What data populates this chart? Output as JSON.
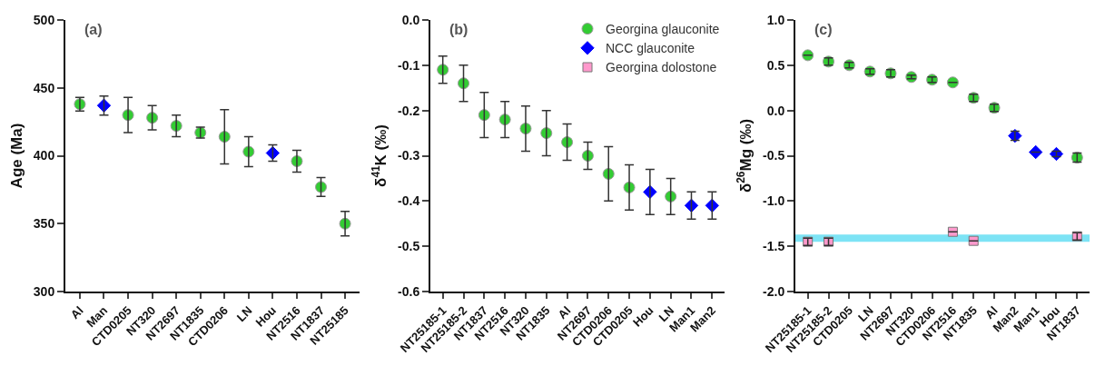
{
  "chart_data": [
    {
      "type": "scatter",
      "ylabel": "Age (Ma)",
      "annotations": [
        "(a)"
      ],
      "categories": [
        "Al",
        "Man",
        "CTD0205",
        "NT320",
        "NT2697",
        "NT1835",
        "CTD0206",
        "LN",
        "Hou",
        "NT2516",
        "NT1837",
        "NT25185"
      ],
      "ylim": [
        300,
        500
      ],
      "yticks": [
        300,
        350,
        400,
        450,
        500
      ],
      "grid": false,
      "legend": false,
      "series": [
        {
          "color": "#33cc33",
          "marker": "circle",
          "values": [
            438,
            null,
            430,
            428,
            422,
            417,
            414,
            403,
            null,
            396,
            377,
            350
          ],
          "errors": [
            [
              433,
              443
            ],
            null,
            [
              417,
              443
            ],
            [
              419,
              437
            ],
            [
              414,
              430
            ],
            [
              413,
              421
            ],
            [
              394,
              434
            ],
            [
              392,
              414
            ],
            null,
            [
              388,
              404
            ],
            [
              370,
              384
            ],
            [
              341,
              359
            ]
          ]
        },
        {
          "color": "#0000ff",
          "marker": "diamond",
          "values": [
            null,
            437,
            null,
            null,
            null,
            null,
            null,
            null,
            402,
            null,
            null,
            null
          ],
          "errors": [
            null,
            [
              430,
              444
            ],
            null,
            null,
            null,
            null,
            null,
            null,
            [
              396,
              408
            ],
            null,
            null,
            null
          ]
        }
      ]
    },
    {
      "type": "scatter",
      "ylabel": "δ$^{41}$K (‰)",
      "annotations": [
        "(b)"
      ],
      "categories": [
        "NT25185-1",
        "NT25185-2",
        "NT1837",
        "NT2516",
        "NT320",
        "NT1835",
        "Al",
        "NT2697",
        "CTD0206",
        "CTD0205",
        "Hou",
        "LN",
        "Man1",
        "Man2"
      ],
      "ylim": [
        -0.6,
        0
      ],
      "yticks": [
        {
          "value": -0.6,
          "label": "-0.6"
        },
        {
          "value": -0.5,
          "label": "-0.5"
        },
        {
          "value": -0.4,
          "label": "-0.4"
        },
        {
          "value": -0.3,
          "label": "-0.3"
        },
        {
          "value": -0.2,
          "label": "-0.2"
        },
        {
          "value": -0.1,
          "label": "-0.1"
        },
        {
          "value": 0,
          "label": "0.0"
        }
      ],
      "grid": false,
      "legend": "top right",
      "series": [
        {
          "name": "Georgina glauconite",
          "color": "#33cc33",
          "marker": "circle",
          "values": [
            -0.11,
            -0.14,
            -0.21,
            -0.22,
            -0.24,
            -0.25,
            -0.27,
            -0.3,
            -0.34,
            -0.37,
            null,
            -0.39,
            null,
            null
          ],
          "errors": [
            [
              -0.14,
              -0.08
            ],
            [
              -0.18,
              -0.1
            ],
            [
              -0.26,
              -0.16
            ],
            [
              -0.26,
              -0.18
            ],
            [
              -0.29,
              -0.19
            ],
            [
              -0.3,
              -0.2
            ],
            [
              -0.31,
              -0.23
            ],
            [
              -0.33,
              -0.27
            ],
            [
              -0.4,
              -0.28
            ],
            [
              -0.42,
              -0.32
            ],
            null,
            [
              -0.43,
              -0.35
            ],
            null,
            null
          ]
        },
        {
          "name": "NCC glauconite",
          "color": "#0000ff",
          "marker": "diamond",
          "values": [
            null,
            null,
            null,
            null,
            null,
            null,
            null,
            null,
            null,
            null,
            -0.38,
            null,
            -0.41,
            -0.41
          ],
          "errors": [
            null,
            null,
            null,
            null,
            null,
            null,
            null,
            null,
            null,
            null,
            [
              -0.43,
              -0.33
            ],
            null,
            [
              -0.44,
              -0.38
            ],
            [
              -0.44,
              -0.38
            ]
          ]
        },
        {
          "name": "Georgina dolostone",
          "color": "#ff99cc",
          "marker": "square",
          "values": [
            null,
            null,
            null,
            null,
            null,
            null,
            null,
            null,
            null,
            null,
            null,
            null,
            null,
            null
          ]
        }
      ]
    },
    {
      "type": "scatter",
      "ylabel": "δ$^{26}$Mg (‰)",
      "annotations": [
        "(c)"
      ],
      "categories": [
        "NT25185-1",
        "NT25185-2",
        "CTD0205",
        "LN",
        "NT2697",
        "NT320",
        "CTD0206",
        "NT2516",
        "NT1835",
        "Al",
        "Man2",
        "Man1",
        "Hou",
        "NT1837"
      ],
      "ylim": [
        -2,
        1
      ],
      "yticks": [
        {
          "value": -2,
          "label": "-2.0"
        },
        {
          "value": -1.5,
          "label": "-1.5"
        },
        {
          "value": -1,
          "label": "-1.0"
        },
        {
          "value": -0.5,
          "label": "-0.5"
        },
        {
          "value": 0,
          "label": "0.0"
        },
        {
          "value": 0.5,
          "label": "0.5"
        },
        {
          "value": 1,
          "label": "1.0"
        }
      ],
      "grid": false,
      "legend": false,
      "bands": [
        {
          "axis": "y",
          "from": -1.45,
          "to": -1.37,
          "color": "#7de3f5"
        }
      ],
      "series": [
        {
          "color": "#33cc33",
          "marker": "circle",
          "values": [
            0.61,
            0.54,
            0.5,
            0.43,
            0.41,
            0.37,
            0.34,
            0.31,
            0.14,
            0.03,
            null,
            null,
            null,
            -0.52
          ],
          "errors": [
            null,
            0.04,
            0.03,
            0.03,
            0.04,
            0.02,
            0.03,
            null,
            0.04,
            0.04,
            null,
            null,
            null,
            0.05
          ]
        },
        {
          "color": "#0000ff",
          "marker": "diamond",
          "values": [
            null,
            null,
            null,
            null,
            null,
            null,
            null,
            null,
            null,
            null,
            -0.28,
            -0.46,
            -0.48,
            null
          ],
          "errors": [
            null,
            null,
            null,
            null,
            null,
            null,
            null,
            null,
            null,
            null,
            0.05,
            null,
            0.03,
            null
          ]
        },
        {
          "color": "#ff99cc",
          "marker": "square",
          "values": [
            -1.45,
            -1.45,
            null,
            null,
            null,
            null,
            null,
            -1.34,
            -1.44,
            null,
            null,
            null,
            null,
            -1.39
          ],
          "errors": [
            0.04,
            0.04,
            null,
            null,
            null,
            null,
            null,
            null,
            null,
            null,
            null,
            null,
            null,
            0.04
          ]
        }
      ]
    }
  ]
}
